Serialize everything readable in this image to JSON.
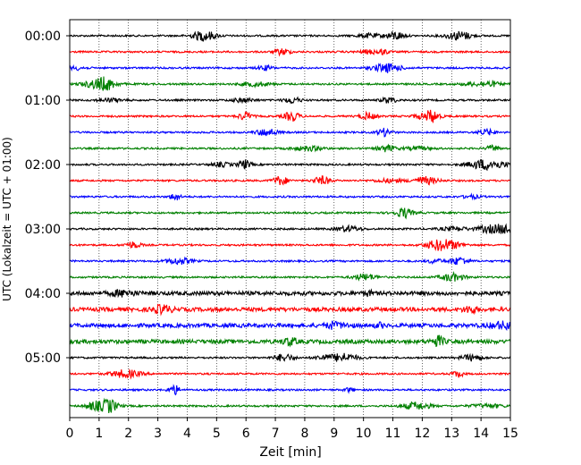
{
  "chart_data": {
    "type": "line",
    "xlabel": "Zeit  [min]",
    "ylabel": "UTC (Lokalzeit = UTC + 01:00)",
    "xlim": [
      0,
      15
    ],
    "x_ticks": [
      "0",
      "1",
      "2",
      "3",
      "4",
      "5",
      "6",
      "7",
      "8",
      "9",
      "10",
      "11",
      "12",
      "13",
      "14",
      "15"
    ],
    "y_tick_labels": [
      "00:00",
      "01:00",
      "02:00",
      "03:00",
      "04:00",
      "05:00"
    ],
    "grid_x": true,
    "trace_colors": [
      "#000000",
      "#ff0000",
      "#0000ff",
      "#008000"
    ],
    "traces": [
      {
        "start": "00:00",
        "color": "#000000"
      },
      {
        "start": "00:15",
        "color": "#ff0000"
      },
      {
        "start": "00:30",
        "color": "#0000ff"
      },
      {
        "start": "00:45",
        "color": "#008000"
      },
      {
        "start": "01:00",
        "color": "#000000"
      },
      {
        "start": "01:15",
        "color": "#ff0000"
      },
      {
        "start": "01:30",
        "color": "#0000ff"
      },
      {
        "start": "01:45",
        "color": "#008000"
      },
      {
        "start": "02:00",
        "color": "#000000"
      },
      {
        "start": "02:15",
        "color": "#ff0000"
      },
      {
        "start": "02:30",
        "color": "#0000ff"
      },
      {
        "start": "02:45",
        "color": "#008000"
      },
      {
        "start": "03:00",
        "color": "#000000"
      },
      {
        "start": "03:15",
        "color": "#ff0000"
      },
      {
        "start": "03:30",
        "color": "#0000ff"
      },
      {
        "start": "03:45",
        "color": "#008000"
      },
      {
        "start": "04:00",
        "color": "#000000"
      },
      {
        "start": "04:15",
        "color": "#ff0000"
      },
      {
        "start": "04:30",
        "color": "#0000ff"
      },
      {
        "start": "04:45",
        "color": "#008000"
      },
      {
        "start": "05:00",
        "color": "#000000"
      },
      {
        "start": "05:15",
        "color": "#ff0000"
      },
      {
        "start": "05:30",
        "color": "#0000ff"
      },
      {
        "start": "05:45",
        "color": "#008000"
      }
    ]
  }
}
